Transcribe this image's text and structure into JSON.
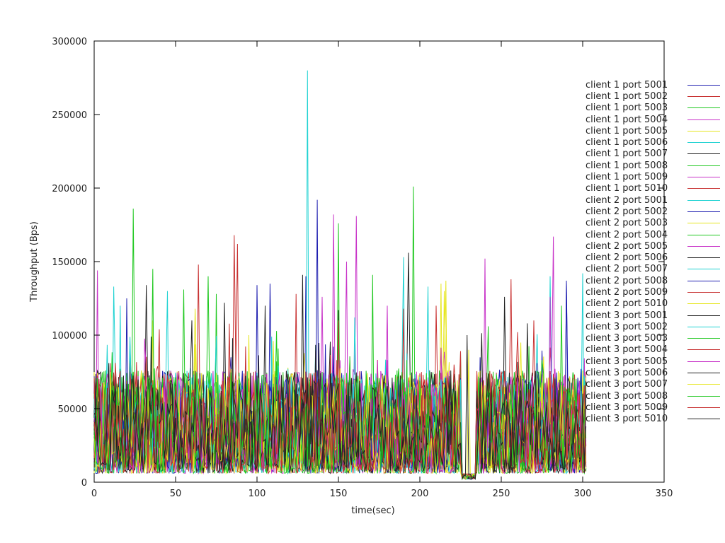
{
  "chart_data": {
    "type": "line",
    "title": "",
    "xlabel": "time(sec)",
    "ylabel": "Throughput (Bps)",
    "xlim": [
      0,
      350
    ],
    "ylim": [
      0,
      300000
    ],
    "xticks": [
      "0",
      "50",
      "100",
      "150",
      "200",
      "250",
      "300",
      "350"
    ],
    "yticks": [
      "0",
      "50000",
      "100000",
      "150000",
      "200000",
      "250000",
      "300000"
    ],
    "legend_position": "right",
    "grid": false,
    "x_end": 302,
    "gap": [
      225,
      235
    ],
    "series": [
      {
        "name": "client 1 port 5001",
        "color": "#1f1fb0",
        "peaks": [
          [
            100,
            134000
          ],
          [
            130,
            140000
          ],
          [
            290,
            136000
          ]
        ]
      },
      {
        "name": "client 1 port 5002",
        "color": "#c83232",
        "peaks": [
          [
            86,
            168000
          ],
          [
            88,
            162000
          ],
          [
            256,
            138000
          ]
        ]
      },
      {
        "name": "client 1 port 5003",
        "color": "#1fc81f",
        "peaks": [
          [
            196,
            201000
          ],
          [
            75,
            128000
          ]
        ]
      },
      {
        "name": "client 1 port 5004",
        "color": "#c832c8",
        "peaks": [
          [
            147,
            182000
          ],
          [
            282,
            167000
          ],
          [
            2,
            144000
          ]
        ]
      },
      {
        "name": "client 1 port 5005",
        "color": "#e6e61f",
        "peaks": [
          [
            213,
            135000
          ],
          [
            62,
            118000
          ]
        ]
      },
      {
        "name": "client 1 port 5006",
        "color": "#1fd2d2",
        "peaks": [
          [
            131,
            280000
          ],
          [
            12,
            133000
          ],
          [
            45,
            130000
          ]
        ]
      },
      {
        "name": "client 1 port 5007",
        "color": "#222222",
        "peaks": [
          [
            32,
            134000
          ],
          [
            80,
            122000
          ],
          [
            193,
            156000
          ]
        ]
      },
      {
        "name": "client 1 port 5008",
        "color": "#1fc81f",
        "peaks": [
          [
            24,
            186000
          ],
          [
            150,
            176000
          ]
        ]
      },
      {
        "name": "client 1 port 5009",
        "color": "#c832c8",
        "peaks": [
          [
            161,
            181000
          ],
          [
            240,
            152000
          ]
        ]
      },
      {
        "name": "client 1 port 5010",
        "color": "#c83232",
        "peaks": [
          [
            64,
            148000
          ],
          [
            210,
            120000
          ]
        ]
      },
      {
        "name": "client 2 port 5001",
        "color": "#1fd2d2",
        "peaks": [
          [
            190,
            153000
          ],
          [
            300,
            142000
          ]
        ]
      },
      {
        "name": "client 2 port 5002",
        "color": "#1f1fb0",
        "peaks": [
          [
            137,
            192000
          ],
          [
            108,
            135000
          ]
        ]
      },
      {
        "name": "client 2 port 5003",
        "color": "#e6e61f",
        "peaks": [
          [
            216,
            137000
          ],
          [
            36,
            110000
          ]
        ]
      },
      {
        "name": "client 2 port 5004",
        "color": "#1fc81f",
        "peaks": [
          [
            36,
            145000
          ],
          [
            171,
            141000
          ]
        ]
      },
      {
        "name": "client 2 port 5005",
        "color": "#c832c8",
        "peaks": [
          [
            155,
            150000
          ],
          [
            180,
            120000
          ]
        ]
      },
      {
        "name": "client 2 port 5006",
        "color": "#222222",
        "peaks": [
          [
            105,
            120000
          ],
          [
            252,
            126000
          ]
        ]
      },
      {
        "name": "client 2 port 5007",
        "color": "#1fd2d2",
        "peaks": [
          [
            16,
            120000
          ],
          [
            205,
            133000
          ]
        ]
      },
      {
        "name": "client 2 port 5008",
        "color": "#1f1fb0",
        "peaks": [
          [
            20,
            125000
          ],
          [
            290,
            137000
          ]
        ]
      },
      {
        "name": "client 2 port 5009",
        "color": "#c83232",
        "peaks": [
          [
            124,
            128000
          ],
          [
            270,
            110000
          ]
        ]
      },
      {
        "name": "client 2 port 5010",
        "color": "#e6e61f",
        "peaks": [
          [
            215,
            130000
          ],
          [
            95,
            100000
          ]
        ]
      },
      {
        "name": "client 3 port 5001",
        "color": "#222222",
        "peaks": [
          [
            128,
            141000
          ],
          [
            60,
            110000
          ]
        ]
      },
      {
        "name": "client 3 port 5002",
        "color": "#1fd2d2",
        "peaks": [
          [
            280,
            140000
          ],
          [
            160,
            112000
          ]
        ]
      },
      {
        "name": "client 3 port 5003",
        "color": "#1fc81f",
        "peaks": [
          [
            55,
            131000
          ],
          [
            287,
            120000
          ]
        ]
      },
      {
        "name": "client 3 port 5004",
        "color": "#c83232",
        "peaks": [
          [
            190,
            118000
          ],
          [
            40,
            104000
          ]
        ]
      },
      {
        "name": "client 3 port 5005",
        "color": "#c832c8",
        "peaks": [
          [
            140,
            126000
          ],
          [
            280,
            126000
          ]
        ]
      },
      {
        "name": "client 3 port 5006",
        "color": "#222222",
        "peaks": [
          [
            150,
            117000
          ],
          [
            266,
            108000
          ]
        ]
      },
      {
        "name": "client 3 port 5007",
        "color": "#e6e61f",
        "peaks": [
          [
            110,
            96000
          ],
          [
            230,
            90000
          ]
        ]
      },
      {
        "name": "client 3 port 5008",
        "color": "#1fc81f",
        "peaks": [
          [
            70,
            140000
          ],
          [
            242,
            106000
          ]
        ]
      },
      {
        "name": "client 3 port 5009",
        "color": "#c83232",
        "peaks": [
          [
            150,
            110000
          ],
          [
            260,
            102000
          ]
        ]
      },
      {
        "name": "client 3 port 5010",
        "color": "#222222",
        "peaks": [
          [
            229,
            100000
          ],
          [
            85,
            98000
          ]
        ]
      }
    ]
  }
}
